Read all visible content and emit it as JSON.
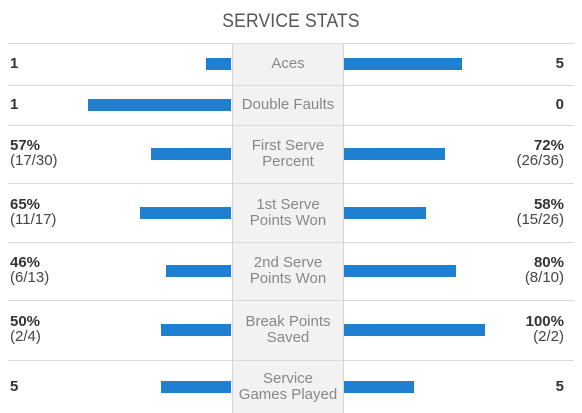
{
  "section_title": "SERVICE STATS",
  "accent_color": "#1f7fd1",
  "rows": [
    {
      "label_lines": [
        "Aces"
      ],
      "left_main": "1",
      "left_sub": "",
      "right_main": "5",
      "right_sub": "",
      "left_fraction": 0.13,
      "right_fraction": 0.62
    },
    {
      "label_lines": [
        "Double Faults"
      ],
      "left_main": "1",
      "left_sub": "",
      "right_main": "0",
      "right_sub": "",
      "left_fraction": 0.75,
      "right_fraction": 0.0
    },
    {
      "label_lines": [
        "First Serve",
        "Percent"
      ],
      "left_main": "57%",
      "left_sub": "(17/30)",
      "right_main": "72%",
      "right_sub": "(26/36)",
      "left_fraction": 0.42,
      "right_fraction": 0.53
    },
    {
      "label_lines": [
        "1st Serve",
        "Points Won"
      ],
      "left_main": "65%",
      "left_sub": "(11/17)",
      "right_main": "58%",
      "right_sub": "(15/26)",
      "left_fraction": 0.48,
      "right_fraction": 0.43
    },
    {
      "label_lines": [
        "2nd Serve",
        "Points Won"
      ],
      "left_main": "46%",
      "left_sub": "(6/13)",
      "right_main": "80%",
      "right_sub": "(8/10)",
      "left_fraction": 0.34,
      "right_fraction": 0.59
    },
    {
      "label_lines": [
        "Break Points",
        "Saved"
      ],
      "left_main": "50%",
      "left_sub": "(2/4)",
      "right_main": "100%",
      "right_sub": "(2/2)",
      "left_fraction": 0.37,
      "right_fraction": 0.74
    },
    {
      "label_lines": [
        "Service",
        "Games Played"
      ],
      "left_main": "5",
      "left_sub": "",
      "right_main": "5",
      "right_sub": "",
      "left_fraction": 0.37,
      "right_fraction": 0.37
    }
  ]
}
